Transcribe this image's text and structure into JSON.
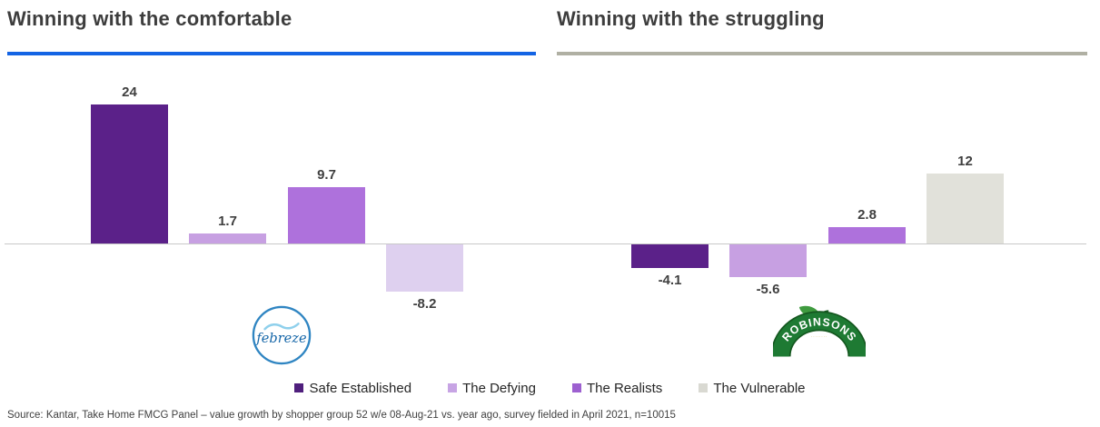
{
  "headers": {
    "left": {
      "title": "Winning with the comfortable",
      "accent_color": "#1464e4"
    },
    "right": {
      "title": "Winning with the struggling",
      "accent_color": "#b0b0a3"
    }
  },
  "chart_data": {
    "type": "bar",
    "layout": {
      "gridlines": false,
      "zero_line": true,
      "value_labels": "outside-end"
    },
    "ylim": [
      -10,
      26
    ],
    "groups": [
      {
        "title": "Winning with the comfortable",
        "brand": "febreze",
        "categories": [
          "Safe Established",
          "The Defying",
          "The Realists",
          "The Vulnerable"
        ],
        "values": [
          24,
          1.7,
          9.7,
          -8.2
        ],
        "value_labels": [
          "24",
          "1.7",
          "9.7",
          "-8.2"
        ],
        "bar_colors": [
          "#5b2189",
          "#c7a0e2",
          "#ae71dc",
          "#ded0ef"
        ]
      },
      {
        "title": "Winning with the struggling",
        "brand": "ROBINSONS",
        "categories": [
          "Safe Established",
          "The Defying",
          "The Realists",
          "The Vulnerable"
        ],
        "values": [
          -4.1,
          -5.6,
          2.8,
          12
        ],
        "value_labels": [
          "-4.1",
          "-5.6",
          "2.8",
          "12"
        ],
        "bar_colors": [
          "#5b2189",
          "#c7a0e2",
          "#ae71dc",
          "#e1e1da"
        ]
      }
    ],
    "legend": {
      "position": "bottom-center",
      "items": [
        {
          "label": "Safe Established",
          "color": "#4f1f7d"
        },
        {
          "label": "The Defying",
          "color": "#c7a4e4"
        },
        {
          "label": "The Realists",
          "color": "#9d60d0"
        },
        {
          "label": "The Vulnerable",
          "color": "#d9d9d2"
        }
      ]
    }
  },
  "colors": {
    "axis_line": "#c8c8c8",
    "value_label_text": "#3f3f3f",
    "title_text": "#3d3d3d",
    "febreze_blue": "#1566a8",
    "robinsons_green": "#1e7a33"
  },
  "source": "Source: Kantar, Take Home FMCG Panel – value growth by shopper group 52 w/e 08-Aug-21 vs. year ago, survey fielded in April 2021, n=10015"
}
